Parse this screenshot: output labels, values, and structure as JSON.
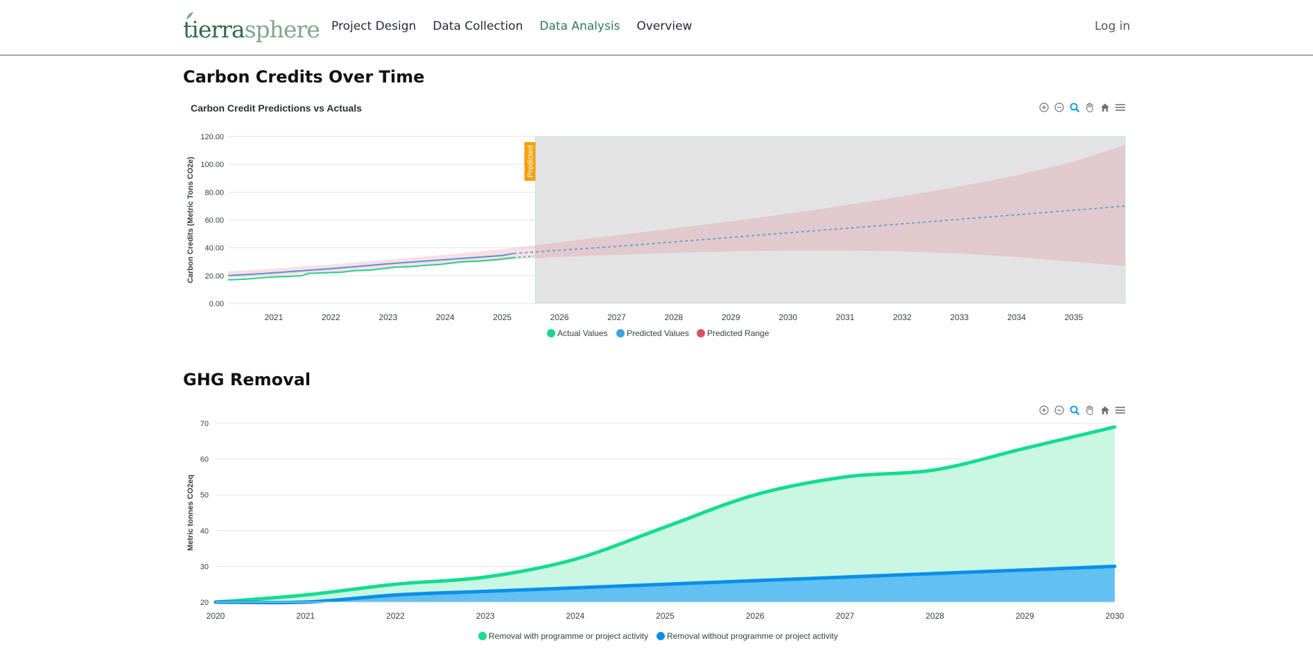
{
  "nav": {
    "logo_part1": "tierra",
    "logo_part2": "sphere",
    "links": [
      "Project Design",
      "Data Collection",
      "Data Analysis",
      "Overview"
    ],
    "active_link": "Data Analysis",
    "login": "Log in"
  },
  "colors": {
    "brand_green": "#2f6b45",
    "actual": "#1fd387",
    "predicted": "#3aa6e0",
    "range": "#d6526a",
    "with_project": "#14dc90",
    "without_project": "#0a8fe8",
    "predicted_badge": "#f5a00a"
  },
  "toolbar_icons": [
    "zoom-in-icon",
    "zoom-out-icon",
    "zoom-select-icon",
    "pan-icon",
    "home-icon",
    "menu-icon"
  ],
  "sections": {
    "carbon_title": "Carbon Credits Over Time",
    "ghg_title": "GHG Removal"
  },
  "chart_data": [
    {
      "type": "line",
      "title": "Carbon Credit Predictions vs Actuals",
      "ylabel": "Carbon Credits (Metric Tons CO2e)",
      "xlabel": "",
      "xlim": [
        2020.2,
        2035.9
      ],
      "ylim": [
        0,
        120
      ],
      "yticks": [
        "0.00",
        "20.00",
        "40.00",
        "60.00",
        "80.00",
        "100.00",
        "120.00"
      ],
      "xticks": [
        "2021",
        "2022",
        "2023",
        "2024",
        "2025",
        "2026",
        "2027",
        "2028",
        "2029",
        "2030",
        "2031",
        "2032",
        "2033",
        "2034",
        "2035"
      ],
      "annotation": {
        "label": "Predicted",
        "x": 2025.58
      },
      "legend": [
        "Actual Values",
        "Predicted Values",
        "Predicted Range"
      ],
      "legend_position": "bottom",
      "grid": true,
      "series": [
        {
          "name": "Actual Values",
          "x": [
            2020.2,
            2020.5,
            2020.8,
            2021.0,
            2021.3,
            2021.5,
            2021.6,
            2021.9,
            2022.2,
            2022.4,
            2022.7,
            2022.9,
            2023.1,
            2023.4,
            2023.7,
            2023.9,
            2024.1,
            2024.3,
            2024.6,
            2024.9,
            2025.0,
            2025.2
          ],
          "y": [
            17,
            17.5,
            18.5,
            19,
            19.5,
            20,
            21.5,
            22,
            22.5,
            23.5,
            24,
            25,
            26,
            26.5,
            27.5,
            28,
            29,
            30,
            30.5,
            31.5,
            32,
            33
          ]
        },
        {
          "name": "Predicted Values",
          "x": [
            2020.2,
            2021,
            2022,
            2023,
            2024,
            2025,
            2025.2
          ],
          "y": [
            20,
            22,
            25,
            28.5,
            31.5,
            34.5,
            36
          ]
        },
        {
          "name": "Predicted Values (forecast)",
          "x": [
            2025.2,
            2027,
            2029,
            2031,
            2033,
            2035,
            2035.9
          ],
          "y": [
            36,
            41,
            47.5,
            54,
            60.5,
            67,
            70
          ]
        },
        {
          "name": "Predicted Range",
          "x": [
            2020.2,
            2021,
            2022,
            2023,
            2024,
            2025,
            2026,
            2027,
            2028,
            2029,
            2030,
            2031,
            2032,
            2033,
            2034,
            2035,
            2035.9
          ],
          "low": [
            18.5,
            20,
            22.5,
            25,
            28,
            31,
            33.5,
            35,
            36.5,
            37.5,
            38,
            38,
            37.5,
            36,
            33.5,
            30,
            27
          ],
          "high": [
            23,
            25,
            28,
            31.5,
            35,
            39,
            44,
            49,
            54,
            59,
            64.5,
            70.5,
            77,
            84,
            92,
            102,
            114
          ]
        }
      ]
    },
    {
      "type": "area",
      "title": "",
      "ylabel": "Metric tonnes CO2eq",
      "xlabel": "",
      "xlim": [
        2020,
        2030
      ],
      "ylim": [
        20,
        70
      ],
      "yticks": [
        "20",
        "30",
        "40",
        "50",
        "60",
        "70"
      ],
      "categories": [
        "2020",
        "2021",
        "2022",
        "2023",
        "2024",
        "2025",
        "2026",
        "2027",
        "2028",
        "2029",
        "2030"
      ],
      "legend": [
        "Removal with programme or project activity",
        "Removal without programme or project activity"
      ],
      "legend_position": "bottom",
      "grid": true,
      "series": [
        {
          "name": "Removal with programme or project activity",
          "values": [
            20,
            22,
            25,
            27,
            32,
            41,
            50,
            55,
            57,
            63,
            69
          ]
        },
        {
          "name": "Removal without programme or project activity",
          "values": [
            20,
            20,
            22,
            23,
            24,
            25,
            26,
            27,
            28,
            29,
            30
          ]
        }
      ]
    }
  ]
}
